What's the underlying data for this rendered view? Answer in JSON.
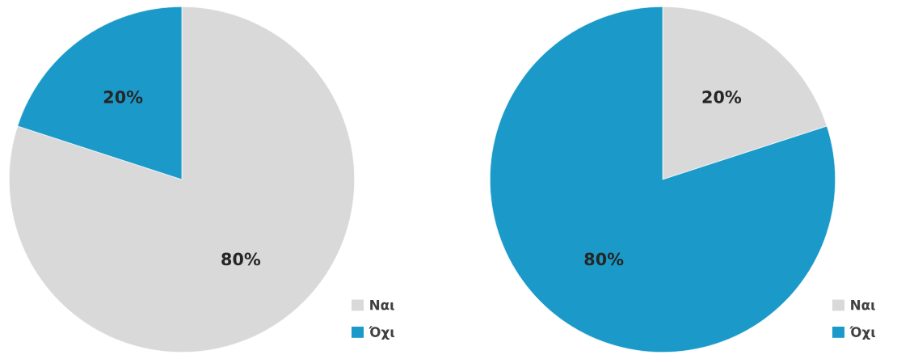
{
  "chart_data": [
    {
      "type": "pie",
      "categories": [
        "Ναι",
        "Όχι"
      ],
      "values": [
        80,
        20
      ],
      "colors": [
        "#d9d9d9",
        "#1b9ac9"
      ],
      "value_labels": [
        "80%",
        "20%"
      ],
      "legend": "bottom right"
    },
    {
      "type": "pie",
      "categories": [
        "Ναι",
        "Όχι"
      ],
      "values": [
        20,
        80
      ],
      "colors": [
        "#d9d9d9",
        "#1b9ac9"
      ],
      "value_labels": [
        "20%",
        "80%"
      ],
      "legend": "bottom right"
    }
  ]
}
